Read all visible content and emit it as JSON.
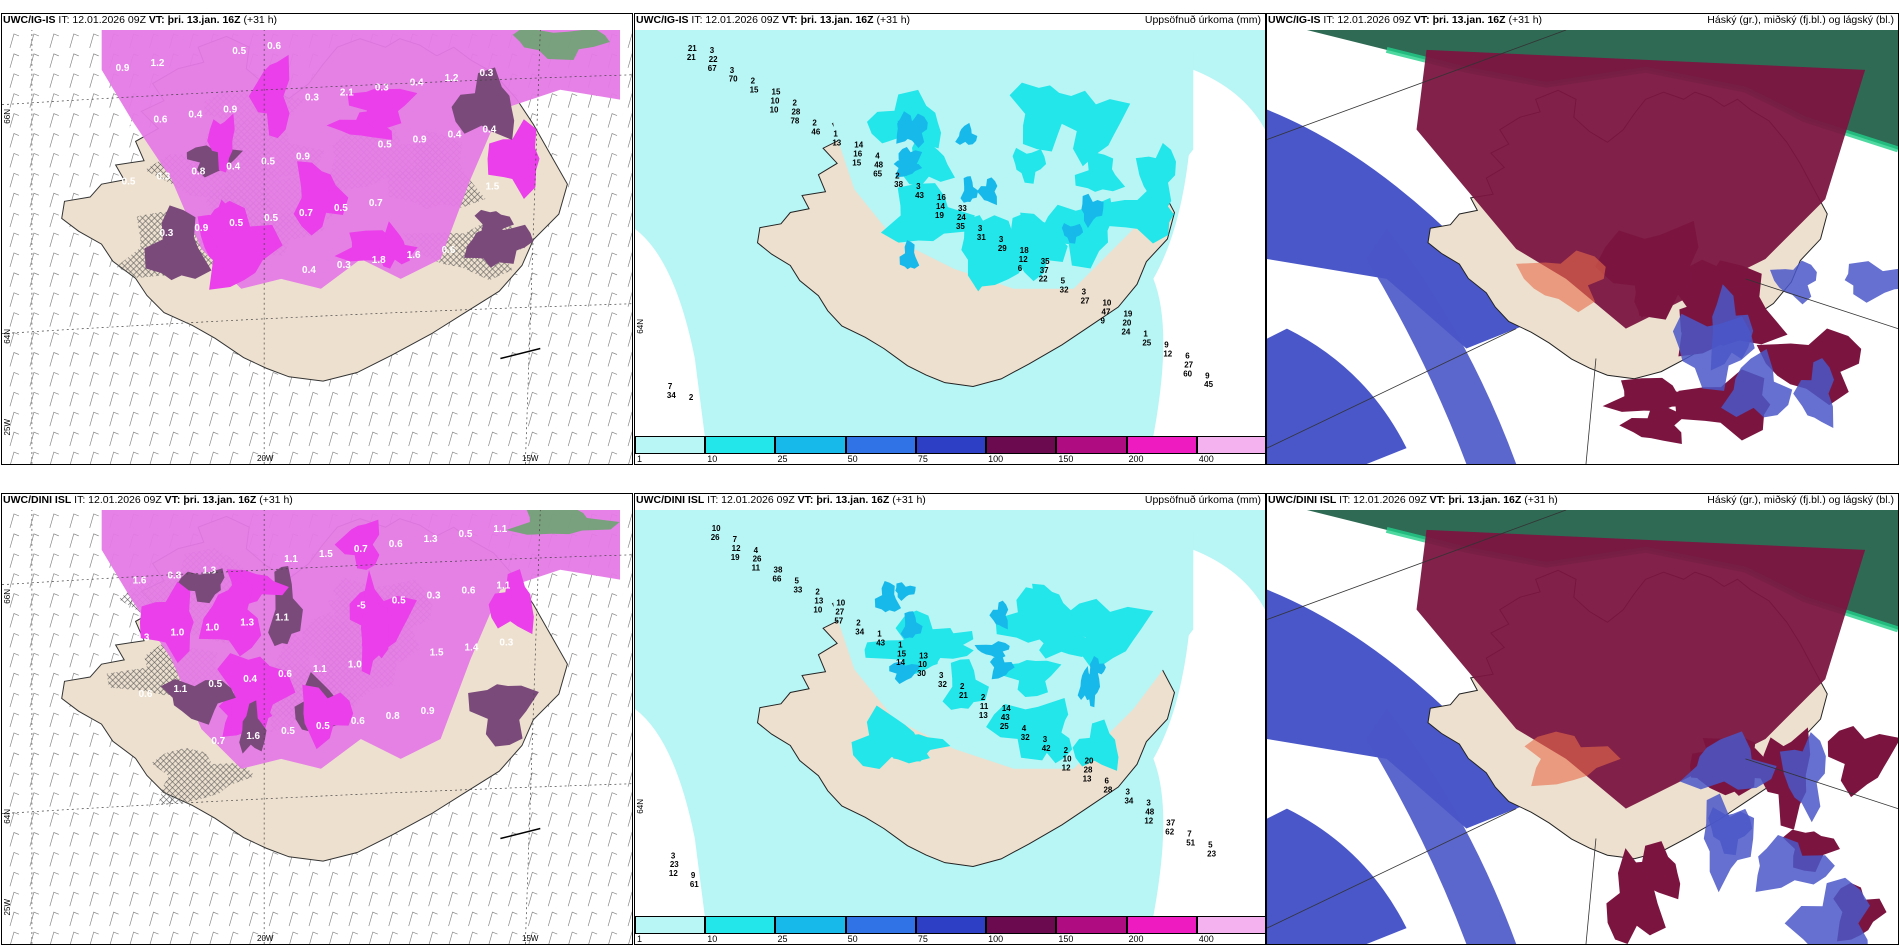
{
  "panels": [
    {
      "model": "UWC/IG-IS",
      "run": "IT: 12.01.2026 09Z",
      "valid": "VT: þri. 13.jan. 16Z",
      "lead": "(+31 h)",
      "right_label": "",
      "kind": "snow",
      "axis": {
        "lat1": "66N",
        "lat2": "64N",
        "lon1": "25W",
        "lon2": "20W",
        "lon3": "15W"
      },
      "labels": [
        "1.2",
        "0.9",
        "0.9",
        "0.7",
        "0.6",
        "0.9",
        "0.4",
        "0.5",
        "0.5",
        "1.6",
        "0.3",
        "0.6",
        "0.4",
        "0.7",
        "1.8",
        "1.2",
        "0.9",
        "0.8",
        "0.5",
        "0.3",
        "0.4",
        "0.4",
        "0.3",
        "0.5",
        "0.4",
        "0.3",
        "0.4",
        "0.5",
        "0.9",
        "0.6",
        "2.1",
        "0.9",
        "1.5",
        "0.3",
        "0.5",
        "0.3",
        "0.5"
      ]
    },
    {
      "model": "UWC/IG-IS",
      "run": "IT: 12.01.2026 09Z",
      "valid": "VT: þri. 13.jan. 16Z",
      "lead": "(+31 h)",
      "right_label": "Uppsöfnuð úrkoma (mm)",
      "kind": "precip",
      "axis": {
        "lat1": "64N"
      },
      "labels": [
        "21",
        "10",
        "15",
        "19",
        "6",
        "9",
        "60",
        "67",
        "78",
        "65",
        "35",
        "22",
        "24",
        "45",
        "70",
        "46",
        "38",
        "31",
        "32",
        "25",
        "34",
        "15",
        "13",
        "43",
        "29",
        "27",
        "12",
        "21",
        "10",
        "16",
        "14",
        "12",
        "47",
        "27",
        "22",
        "28",
        "48",
        "24",
        "37",
        "20",
        "9",
        "3",
        "2",
        "2",
        "3",
        "5",
        "1",
        "7",
        "2",
        "1",
        "3",
        "3",
        "3",
        "9",
        "2",
        "15",
        "14",
        "16",
        "18",
        "10",
        "6",
        "3",
        "2",
        "4",
        "33",
        "35",
        "19"
      ],
      "legend": {
        "ticks": [
          "1",
          "10",
          "25",
          "50",
          "75",
          "100",
          "150",
          "200",
          "400"
        ],
        "colors": [
          "#b8f5f5",
          "#22e6ea",
          "#17b9ea",
          "#2f73e6",
          "#2d3fc4",
          "#6b0a4e",
          "#b00c82",
          "#ee1cc0",
          "#f4b3ee"
        ]
      }
    },
    {
      "model": "UWC/IG-IS",
      "run": "IT: 12.01.2026 09Z",
      "valid": "VT: þri. 13.jan. 16Z",
      "lead": "(+31 h)",
      "right_label": "Háský (gr.), miðský (fj.bl.) og lágský (bl.)",
      "kind": "cloud"
    },
    {
      "model": "UWC/DINI ISL",
      "run": "IT: 12.01.2026 09Z",
      "valid": "VT: þri. 13.jan. 16Z",
      "lead": "(+31 h)",
      "right_label": "",
      "kind": "snow",
      "axis": {
        "lat1": "66N",
        "lat2": "64N",
        "lon1": "25W",
        "lon2": "20W",
        "lon3": "15W"
      },
      "labels": [
        "1.3",
        "1.1",
        "1.0",
        "0.9",
        "1.1",
        "0.8",
        "1.3",
        "1.1",
        "0.8",
        "0.5",
        "1.6",
        "1.0",
        "0.6",
        "0.6",
        "1.3",
        "1.1",
        "1.0",
        "0.4",
        "0.5",
        "0.6",
        "0.6",
        "0.3",
        "0.5",
        "0.5",
        "0.7",
        "0.3",
        "0.3",
        "1.1",
        "1.6",
        "1.5",
        "0.5",
        "1.4",
        "0.6",
        "0.7",
        "1.1",
        "-5",
        "1.5"
      ]
    },
    {
      "model": "UWC/DINI ISL",
      "run": "IT: 12.01.2026 09Z",
      "valid": "VT: þri. 13.jan. 16Z",
      "lead": "(+31 h)",
      "right_label": "Uppsöfnuð úrkoma (mm)",
      "kind": "precip",
      "axis": {
        "lat1": "64N"
      },
      "labels": [
        "19",
        "10",
        "14",
        "13",
        "12",
        "12",
        "12",
        "11",
        "57",
        "30",
        "25",
        "13",
        "62",
        "61",
        "66",
        "34",
        "32",
        "32",
        "28",
        "51",
        "26",
        "33",
        "43",
        "21",
        "42",
        "34",
        "23",
        "12",
        "13",
        "15",
        "11",
        "10",
        "48",
        "23",
        "26",
        "27",
        "10",
        "43",
        "28",
        "37",
        "9",
        "38",
        "2",
        "3",
        "4",
        "6",
        "7",
        "10",
        "5",
        "1",
        "2",
        "3",
        "3",
        "5",
        "7",
        "2",
        "1",
        "2",
        "2",
        "3",
        "3",
        "4",
        "10",
        "13",
        "14",
        "20"
      ],
      "legend": {
        "ticks": [
          "1",
          "10",
          "25",
          "50",
          "75",
          "100",
          "150",
          "200",
          "400"
        ],
        "colors": [
          "#b8f5f5",
          "#22e6ea",
          "#17b9ea",
          "#2f73e6",
          "#2d3fc4",
          "#6b0a4e",
          "#b00c82",
          "#ee1cc0",
          "#f4b3ee"
        ]
      }
    },
    {
      "model": "UWC/DINI ISL",
      "run": "IT: 12.01.2026 09Z",
      "valid": "VT: þri. 13.jan. 16Z",
      "lead": "(+31 h)",
      "right_label": "Háský (gr.), miðský (fj.bl.) og lágský (bl.)",
      "kind": "cloud"
    }
  ],
  "colors": {
    "land": "#ede0cf",
    "snow_light": "#e57ae6",
    "snow_mid": "#ea3fea",
    "snow_dark": "#7a4a7a",
    "precip_light": "#b8f5f5",
    "precip_mid": "#22e6ea",
    "precip_high": "#17b9ea",
    "cloud_high": "#2f6a55",
    "cloud_mid": "#7b1540",
    "cloud_low": "#4a57c8"
  }
}
